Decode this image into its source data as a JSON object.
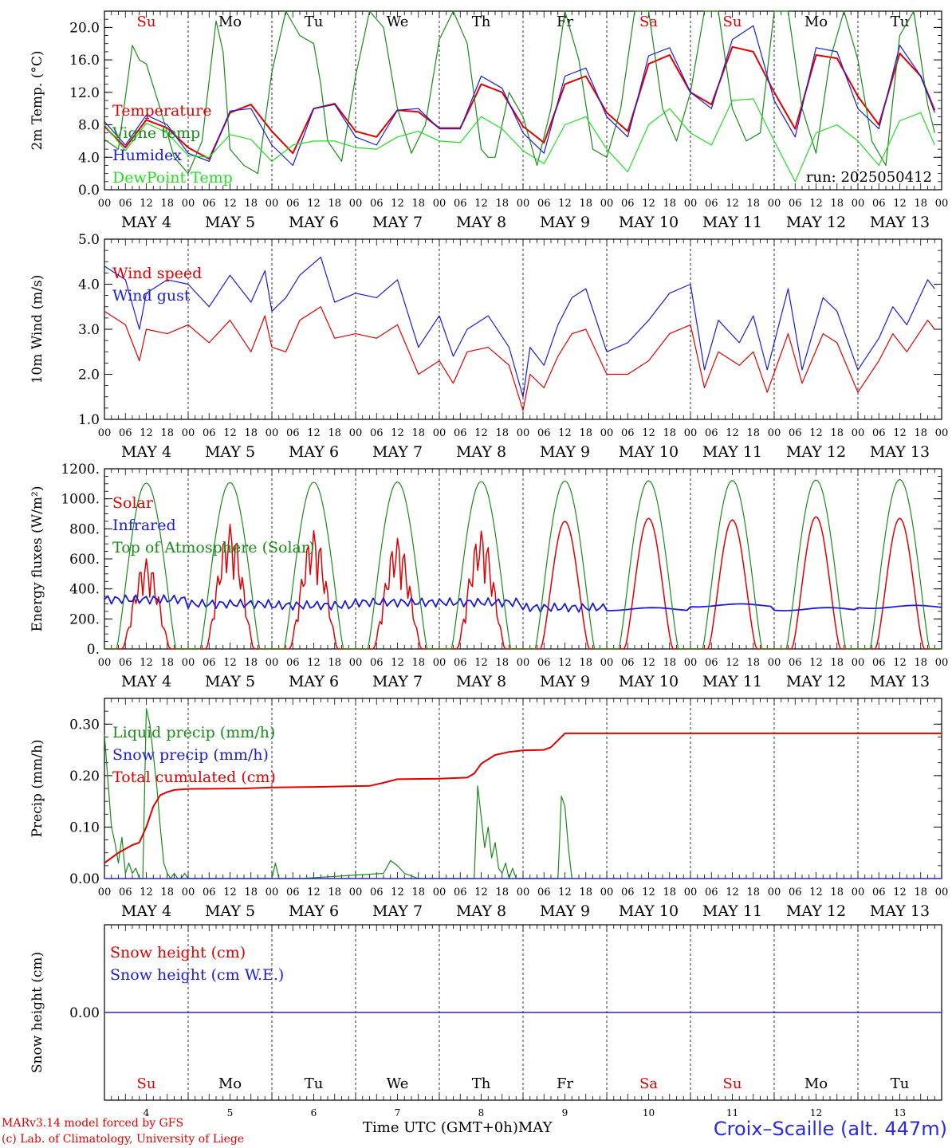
{
  "days": {
    "dates": [
      "MAY 4",
      "MAY 5",
      "MAY 6",
      "MAY 7",
      "MAY 8",
      "MAY 9",
      "MAY 10",
      "MAY 11",
      "MAY 12",
      "MAY 13"
    ],
    "weekdays": [
      "Su",
      "Mo",
      "Tu",
      "We",
      "Th",
      "Fr",
      "Sa",
      "Su",
      "Mo",
      "Tu"
    ],
    "weekday_colors": [
      "#e00000",
      "#000000",
      "#000000",
      "#000000",
      "#000000",
      "#000000",
      "#e00000",
      "#e00000",
      "#000000",
      "#000000"
    ],
    "day_numbers": [
      "4",
      "5",
      "6",
      "7",
      "8",
      "9",
      "10",
      "11",
      "12",
      "13"
    ],
    "hour_labels": [
      "00",
      "06",
      "12",
      "18"
    ],
    "final_hour_label": "00"
  },
  "colors": {
    "red": "#e00000",
    "green": "#1a8a1a",
    "blue": "#1a1ae0",
    "lightgreen": "#22dd22"
  },
  "chart_data": [
    {
      "type": "line",
      "ylabel": "2m Temp. (°C)",
      "ylim": [
        0,
        22
      ],
      "yticks": [
        "0.0",
        "4.0",
        "8.0",
        "12.0",
        "16.0",
        "20.0"
      ],
      "annotation": "run: 2025050412",
      "series": [
        {
          "name": "Temperature",
          "color": "red",
          "x": [
            0,
            6,
            12,
            18,
            24,
            30,
            36,
            42,
            48,
            54,
            60,
            66,
            72,
            78,
            84,
            90,
            96,
            102,
            108,
            114,
            120,
            126,
            132,
            138,
            144,
            150,
            156,
            162,
            168,
            174,
            180,
            186,
            192,
            198,
            204,
            210,
            216,
            222,
            228,
            234,
            238
          ],
          "y": [
            7.8,
            5.2,
            8.6,
            7.6,
            5.2,
            3.8,
            9.5,
            10.5,
            7.2,
            4.5,
            10,
            10.6,
            7.2,
            6.5,
            9.8,
            9.6,
            7.6,
            7.6,
            13.0,
            12.0,
            7.8,
            5.8,
            13.0,
            14.0,
            9.5,
            7.2,
            15.5,
            16.6,
            12.0,
            10.5,
            17.6,
            17.0,
            12.0,
            7.5,
            16.6,
            16.2,
            11.5,
            8.0,
            16.8,
            14.0,
            9.8
          ]
        },
        {
          "name": "Vigne temp",
          "color": "green",
          "x": [
            0,
            4,
            8,
            10,
            12,
            16,
            20,
            24,
            28,
            32,
            34,
            36,
            40,
            44,
            48,
            52,
            56,
            60,
            62,
            64,
            68,
            72,
            76,
            80,
            84,
            88,
            92,
            96,
            100,
            104,
            108,
            110,
            112,
            116,
            120,
            124,
            128,
            132,
            136,
            140,
            144,
            148,
            152,
            156,
            160,
            164,
            168,
            172,
            176,
            180,
            184,
            188,
            192,
            196,
            200,
            204,
            208,
            212,
            216,
            220,
            224,
            228,
            232,
            236,
            238
          ],
          "y": [
            6.2,
            5.0,
            17.8,
            16.0,
            15.5,
            10.0,
            4.0,
            2.0,
            6.0,
            20.8,
            17.0,
            5.0,
            3.0,
            2.0,
            14.5,
            22,
            19.0,
            18.0,
            13.0,
            6.0,
            3.5,
            14.0,
            22,
            20.0,
            10.0,
            4.5,
            8.0,
            18.5,
            22,
            18.0,
            5.0,
            4.0,
            4.0,
            12.0,
            9.0,
            3.0,
            10.0,
            22,
            16.0,
            5.0,
            4.0,
            10.0,
            22,
            22,
            10.0,
            6.0,
            12.0,
            22,
            22,
            10.0,
            6.0,
            7.0,
            22,
            22,
            10.0,
            4.5,
            16.0,
            22,
            16.0,
            6.0,
            3.0,
            19.0,
            22,
            10.5,
            7.0
          ]
        },
        {
          "name": "Humidex",
          "color": "blue",
          "x": [
            0,
            6,
            12,
            18,
            24,
            30,
            36,
            42,
            48,
            54,
            60,
            66,
            72,
            78,
            84,
            90,
            96,
            102,
            108,
            114,
            120,
            126,
            132,
            138,
            144,
            150,
            156,
            162,
            168,
            174,
            180,
            186,
            192,
            198,
            204,
            210,
            216,
            222,
            228,
            234,
            238
          ],
          "y": [
            8.4,
            5.5,
            9.2,
            8.0,
            4.5,
            3.5,
            9.7,
            10.0,
            5.5,
            3.0,
            10.0,
            10.5,
            6.5,
            5.5,
            9.8,
            10.0,
            7.5,
            7.5,
            14.0,
            12.5,
            7.0,
            4.5,
            14.0,
            15.0,
            9.0,
            6.5,
            16.5,
            17.5,
            12.0,
            10.0,
            18.5,
            20.2,
            11.0,
            6.5,
            17.5,
            17.0,
            10.0,
            7.5,
            17.8,
            14.0,
            9.5
          ]
        },
        {
          "name": "DewPoint Temp",
          "color": "lightgreen",
          "x": [
            0,
            6,
            12,
            18,
            24,
            30,
            36,
            42,
            48,
            54,
            60,
            66,
            72,
            78,
            84,
            90,
            96,
            102,
            108,
            114,
            120,
            126,
            132,
            138,
            144,
            150,
            156,
            162,
            168,
            174,
            180,
            186,
            192,
            198,
            204,
            210,
            216,
            222,
            228,
            234,
            238
          ],
          "y": [
            8.0,
            4.8,
            8.2,
            7.0,
            4.2,
            4.0,
            6.8,
            6.2,
            3.5,
            5.5,
            6.0,
            6.0,
            5.2,
            5.0,
            6.5,
            7.2,
            6.0,
            5.8,
            9.0,
            7.5,
            4.8,
            3.2,
            8.0,
            9.0,
            5.0,
            2.2,
            8.0,
            10.0,
            7.0,
            5.5,
            11.0,
            11.2,
            6.0,
            1.0,
            7.0,
            8.0,
            6.0,
            3.0,
            8.5,
            9.5,
            5.5
          ]
        }
      ]
    },
    {
      "type": "line",
      "ylabel": "10m Wind (m/s)",
      "ylim": [
        1,
        5
      ],
      "yticks": [
        "1.0",
        "2.0",
        "3.0",
        "4.0",
        "5.0"
      ],
      "series": [
        {
          "name": "Wind speed",
          "color": "red",
          "x": [
            0,
            6,
            10,
            12,
            18,
            24,
            30,
            36,
            42,
            46,
            48,
            52,
            56,
            62,
            66,
            72,
            78,
            84,
            90,
            96,
            100,
            104,
            110,
            116,
            120,
            122,
            126,
            130,
            134,
            138,
            144,
            150,
            156,
            162,
            168,
            172,
            176,
            182,
            186,
            190,
            196,
            200,
            206,
            210,
            216,
            222,
            226,
            230,
            236,
            238
          ],
          "y": [
            3.4,
            3.1,
            2.3,
            3.0,
            2.9,
            3.1,
            2.7,
            3.2,
            2.5,
            3.3,
            2.6,
            2.5,
            3.2,
            3.5,
            2.8,
            2.9,
            2.8,
            3.1,
            2.0,
            2.3,
            1.8,
            2.5,
            2.6,
            2.2,
            1.2,
            2.0,
            1.7,
            2.4,
            2.9,
            3.0,
            2.0,
            2.0,
            2.3,
            2.9,
            3.1,
            1.7,
            2.5,
            2.2,
            2.5,
            1.6,
            2.9,
            1.8,
            2.9,
            2.7,
            1.6,
            2.3,
            2.9,
            2.5,
            3.2,
            3.0
          ]
        },
        {
          "name": "Wind gust",
          "color": "blue",
          "x": [
            0,
            6,
            10,
            12,
            18,
            24,
            30,
            36,
            42,
            46,
            48,
            52,
            56,
            62,
            66,
            72,
            78,
            84,
            90,
            96,
            100,
            104,
            110,
            116,
            120,
            122,
            126,
            130,
            134,
            138,
            144,
            150,
            156,
            162,
            168,
            172,
            176,
            182,
            186,
            190,
            196,
            200,
            206,
            210,
            216,
            222,
            226,
            230,
            236,
            238
          ],
          "y": [
            4.4,
            4.1,
            3.0,
            3.8,
            4.1,
            4.0,
            3.5,
            4.2,
            3.6,
            4.3,
            3.4,
            3.7,
            4.2,
            4.6,
            3.6,
            3.8,
            3.7,
            4.1,
            2.6,
            3.3,
            2.4,
            3.0,
            3.3,
            2.6,
            1.5,
            2.6,
            2.2,
            3.1,
            3.7,
            3.9,
            2.5,
            2.7,
            3.2,
            3.8,
            4.0,
            2.1,
            3.2,
            2.7,
            3.3,
            2.1,
            3.9,
            2.1,
            3.7,
            3.4,
            2.1,
            2.8,
            3.5,
            3.1,
            4.1,
            3.9
          ]
        }
      ]
    },
    {
      "type": "line",
      "ylabel": "Energy fluxes (W/m²)",
      "ylim": [
        0,
        1200
      ],
      "yticks": [
        "0.",
        "200.",
        "400.",
        "600.",
        "800.",
        "1000.",
        "1200."
      ],
      "series": [
        {
          "name": "Solar",
          "color": "red",
          "peaks": [
            600,
            830,
            790,
            740,
            790,
            850,
            870,
            860,
            880,
            870
          ]
        },
        {
          "name": "Infrared",
          "color": "blue",
          "base": [
            330,
            300,
            290,
            310,
            310,
            275,
            265,
            290,
            265,
            280
          ]
        },
        {
          "name": "Top of Atmosphere (Solar)",
          "color": "green",
          "peaks": [
            1105,
            1108,
            1110,
            1112,
            1115,
            1118,
            1120,
            1122,
            1125,
            1128
          ]
        }
      ]
    },
    {
      "type": "line",
      "ylabel": "Precip (mm/h)",
      "ylim": [
        0,
        0.35
      ],
      "yticks": [
        "0.00",
        "0.10",
        "0.20",
        "0.30"
      ],
      "series": [
        {
          "name": "Liquid precip (mm/h)",
          "color": "green",
          "x": [
            0,
            2,
            3,
            4,
            5,
            6,
            7,
            8,
            9,
            10,
            11,
            12,
            13,
            14,
            15,
            16,
            17,
            18,
            19,
            20,
            21,
            22,
            23,
            24,
            48,
            49,
            50,
            56,
            80,
            82,
            84,
            86,
            90,
            104,
            106,
            107,
            108,
            109,
            110,
            111,
            112,
            113,
            114,
            115,
            116,
            117,
            118,
            120,
            130,
            131,
            132,
            133,
            134
          ],
          "y": [
            0.28,
            0.1,
            0.07,
            0.03,
            0.08,
            0.01,
            0.03,
            0.01,
            0.02,
            0.0,
            0.0,
            0.33,
            0.3,
            0.24,
            0.18,
            0.1,
            0.03,
            0.01,
            0.0,
            0.01,
            0.0,
            0.0,
            0.01,
            0.0,
            0.0,
            0.03,
            0.0,
            0.0,
            0.01,
            0.035,
            0.025,
            0.01,
            0.0,
            0.0,
            0.0,
            0.18,
            0.12,
            0.06,
            0.1,
            0.04,
            0.07,
            0.02,
            0.01,
            0.03,
            0.0,
            0.02,
            0.0,
            0.0,
            0.0,
            0.16,
            0.14,
            0.06,
            0.0
          ]
        },
        {
          "name": "Snow precip (mm/h)",
          "color": "blue",
          "x": [
            0,
            240
          ],
          "y": [
            0,
            0
          ]
        },
        {
          "name": "Total cumulated (cm)",
          "color": "red",
          "x": [
            0,
            4,
            8,
            10,
            12,
            14,
            16,
            18,
            20,
            24,
            40,
            48,
            60,
            76,
            80,
            84,
            96,
            104,
            106,
            108,
            112,
            116,
            120,
            126,
            128,
            132,
            144,
            192,
            240
          ],
          "y": [
            0.03,
            0.05,
            0.065,
            0.07,
            0.1,
            0.14,
            0.162,
            0.168,
            0.172,
            0.174,
            0.175,
            0.177,
            0.178,
            0.18,
            0.186,
            0.193,
            0.194,
            0.196,
            0.204,
            0.223,
            0.24,
            0.246,
            0.249,
            0.25,
            0.255,
            0.282,
            0.282,
            0.282,
            0.282
          ]
        }
      ]
    },
    {
      "type": "line",
      "ylabel": "Snow height (cm)",
      "ylim": [
        -1,
        1
      ],
      "yticks": [
        "0.00"
      ],
      "series": [
        {
          "name": "Snow height (cm)",
          "color": "red",
          "x": [
            0,
            240
          ],
          "y": [
            0,
            0
          ]
        },
        {
          "name": "Snow height (cm W.E.)",
          "color": "blue",
          "x": [
            0,
            240
          ],
          "y": [
            0,
            0
          ]
        }
      ]
    }
  ],
  "xaxis": {
    "label_prefix": "Time UTC (GMT+0h)",
    "label_month": "MAY"
  },
  "footer": {
    "model": "MARv3.14 model forced by GFS",
    "copyright": "(c) Lab. of Climatology, University of Liege",
    "station": "Croix–Scaille (alt. 447m)"
  }
}
